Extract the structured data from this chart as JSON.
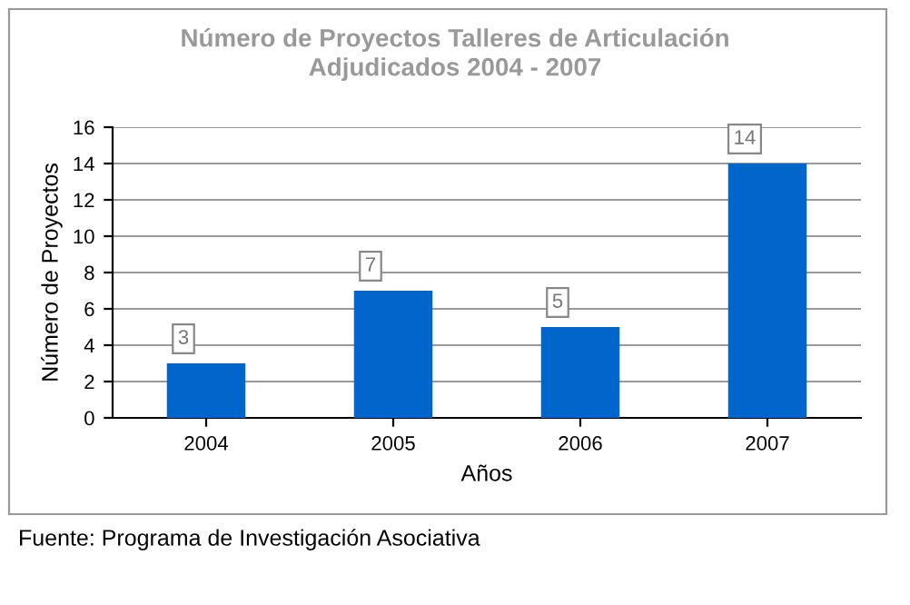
{
  "chart_data": {
    "type": "bar",
    "title": "Número de Proyectos Talleres de Articulación\nAdjudicados 2004 - 2007",
    "xlabel": "Años",
    "ylabel": "Número de Proyectos",
    "categories": [
      "2004",
      "2005",
      "2006",
      "2007"
    ],
    "values": [
      3,
      7,
      5,
      14
    ],
    "color": "#0066cc",
    "ylim": [
      0,
      16
    ],
    "yticks": [
      0,
      2,
      4,
      6,
      8,
      10,
      12,
      14,
      16
    ],
    "grid": "y",
    "data_labels": true,
    "legend": false,
    "annotations": [
      "Fuente: Programa de Investigación Asociativa"
    ]
  }
}
